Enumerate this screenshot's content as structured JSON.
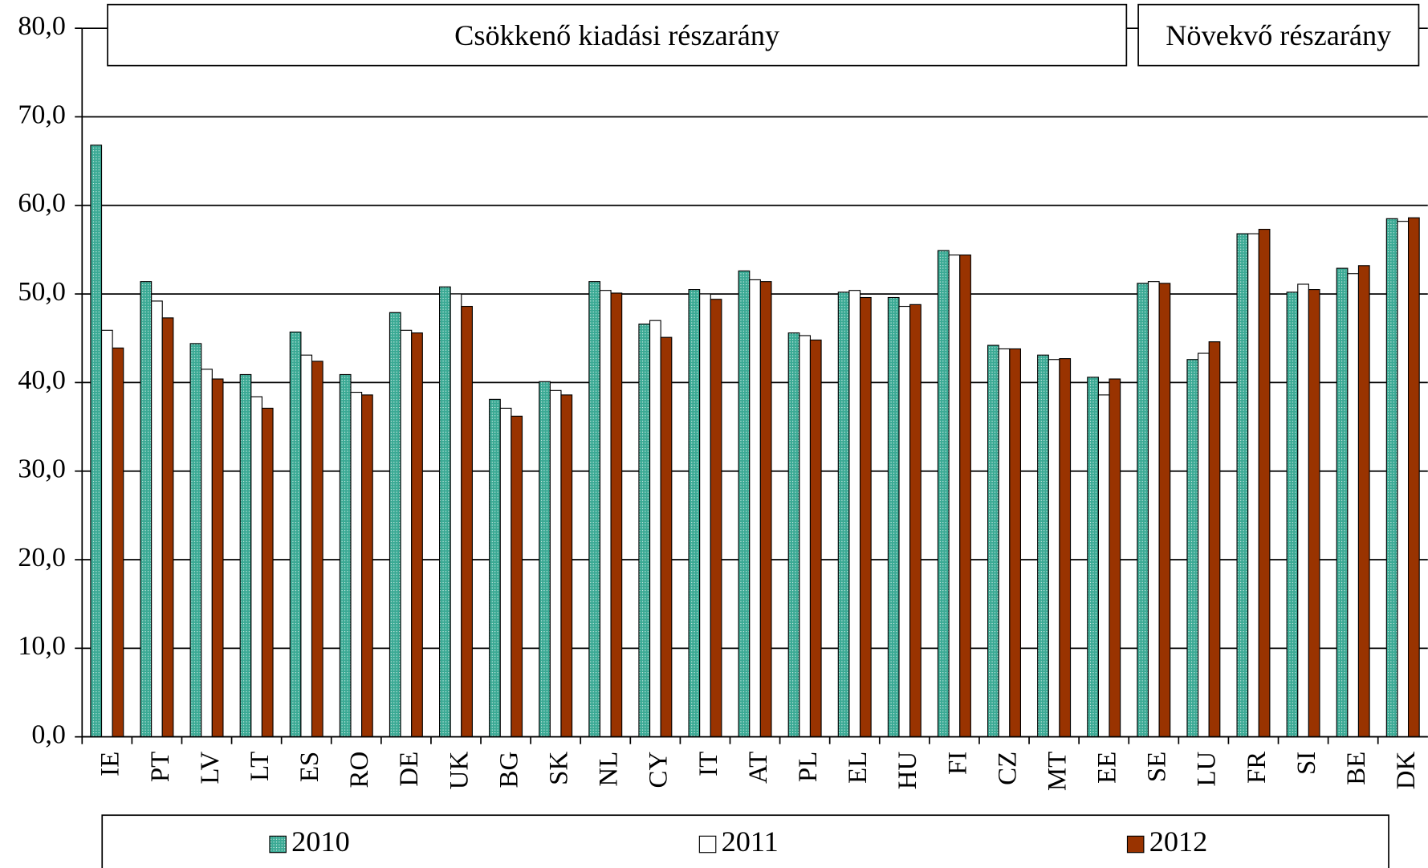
{
  "chart_data": {
    "type": "bar",
    "annotations": [
      "Csökkenő kiadási részarány",
      "Növekvő részarány"
    ],
    "categories": [
      "IE",
      "PT",
      "LV",
      "LT",
      "ES",
      "RO",
      "DE",
      "UK",
      "BG",
      "SK",
      "NL",
      "CY",
      "IT",
      "AT",
      "PL",
      "EL",
      "HU",
      "FI",
      "CZ",
      "MT",
      "EE",
      "SE",
      "LU",
      "FR",
      "SI",
      "BE",
      "DK"
    ],
    "series": [
      {
        "name": "2010",
        "color": "#3aa994",
        "values": [
          66.8,
          51.4,
          44.4,
          40.9,
          45.7,
          40.9,
          47.9,
          50.8,
          38.1,
          40.1,
          51.4,
          46.6,
          50.5,
          52.6,
          45.6,
          50.2,
          49.6,
          54.9,
          44.2,
          43.1,
          40.6,
          51.2,
          42.6,
          56.8,
          50.2,
          52.9,
          58.5
        ]
      },
      {
        "name": "2011",
        "color": "#ffffff",
        "values": [
          45.9,
          49.2,
          41.5,
          38.4,
          43.1,
          38.9,
          45.9,
          50.0,
          37.1,
          39.1,
          50.4,
          47.0,
          50.0,
          51.6,
          45.3,
          50.4,
          48.6,
          54.4,
          43.8,
          42.6,
          38.6,
          51.4,
          43.3,
          56.8,
          51.1,
          52.3,
          58.2
        ]
      },
      {
        "name": "2012",
        "color": "#993300",
        "values": [
          43.9,
          47.3,
          40.4,
          37.1,
          42.4,
          38.6,
          45.6,
          48.6,
          36.2,
          38.6,
          50.1,
          45.1,
          49.4,
          51.4,
          44.8,
          49.6,
          48.8,
          54.4,
          43.8,
          42.7,
          40.4,
          51.2,
          44.6,
          57.3,
          50.5,
          53.2,
          58.6
        ]
      }
    ],
    "ylim": [
      0,
      80
    ],
    "yticks": [
      {
        "value": 0,
        "label": "0,0"
      },
      {
        "value": 10,
        "label": "10,0"
      },
      {
        "value": 20,
        "label": "20,0"
      },
      {
        "value": 30,
        "label": "30,0"
      },
      {
        "value": 40,
        "label": "40,0"
      },
      {
        "value": 50,
        "label": "50,0"
      },
      {
        "value": 60,
        "label": "60,0"
      },
      {
        "value": 70,
        "label": "70,0"
      },
      {
        "value": 80,
        "label": "80,0"
      }
    ],
    "grid": true,
    "legend": "bottom"
  }
}
